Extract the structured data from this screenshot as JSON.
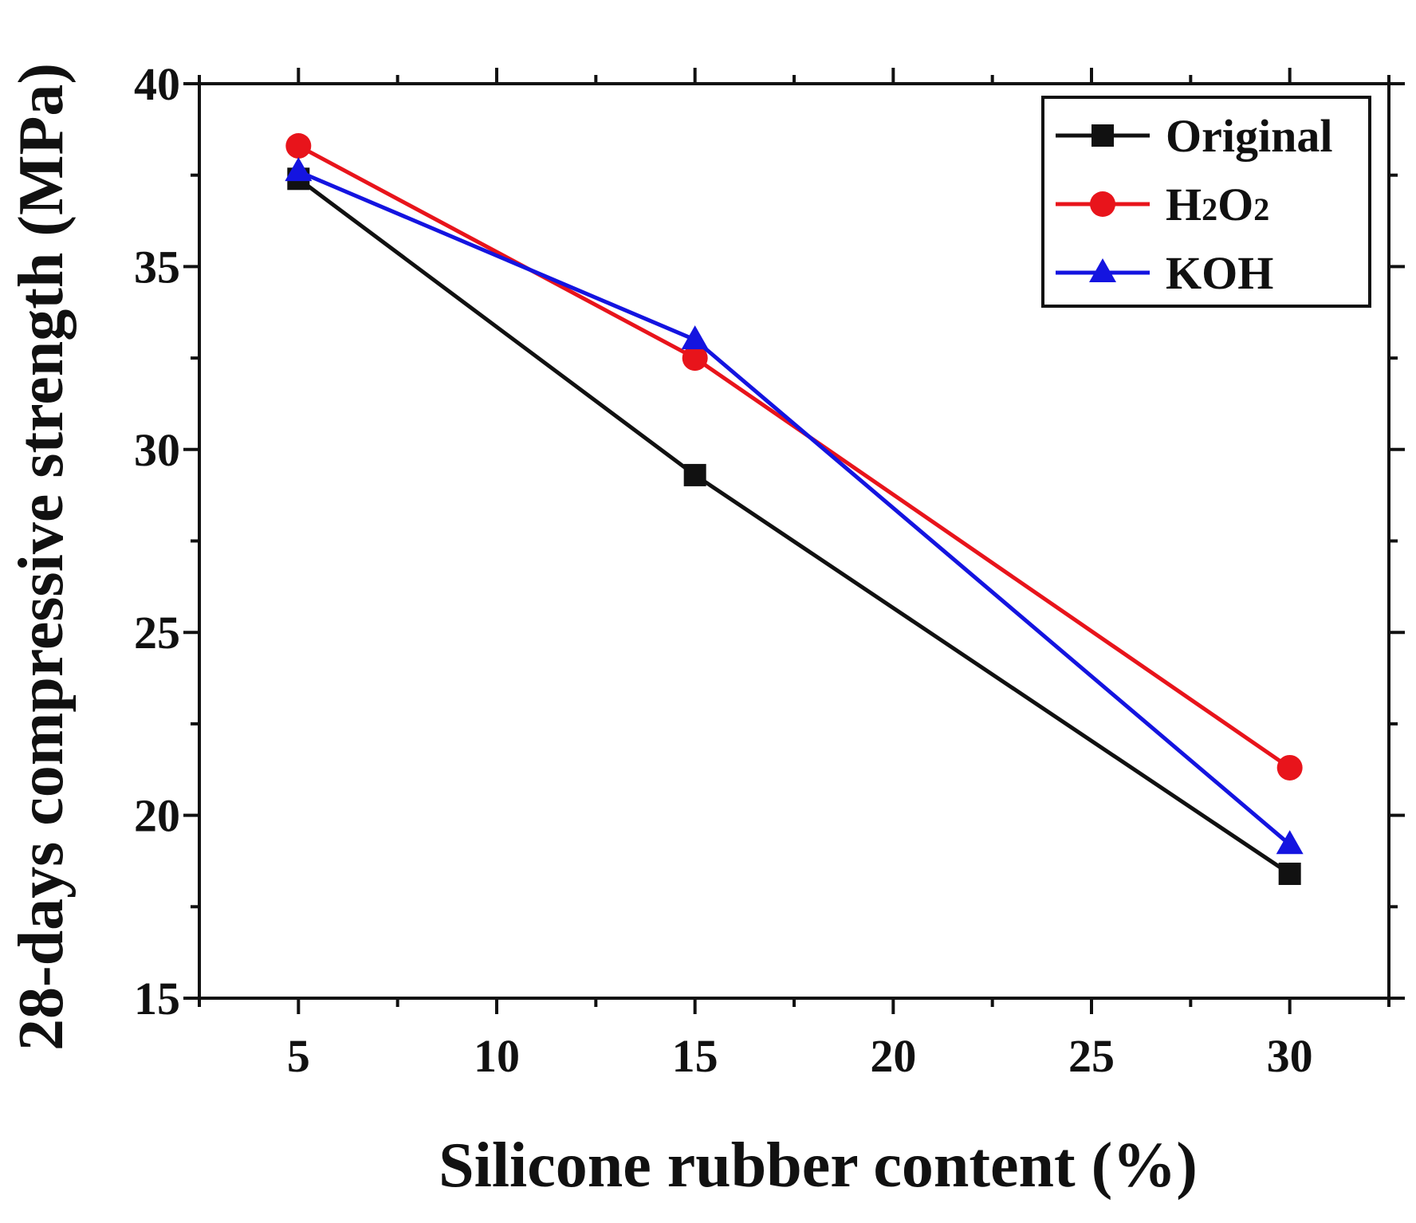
{
  "chart_data": {
    "type": "line",
    "title": "",
    "xlabel": "Silicone rubber content (%)",
    "ylabel": "28-days compressive strength (MPa)",
    "xlim": [
      2.5,
      32.5
    ],
    "ylim": [
      15,
      40
    ],
    "xticks": [
      5,
      10,
      15,
      20,
      25,
      30
    ],
    "xtick_labels": [
      "5",
      "10",
      "15",
      "20",
      "25",
      "30"
    ],
    "yticks": [
      15,
      20,
      25,
      30,
      35,
      40
    ],
    "ytick_labels": [
      "15",
      "20",
      "25",
      "30",
      "35",
      "40"
    ],
    "grid": false,
    "legend_position": "top-right",
    "x": [
      5,
      15,
      30
    ],
    "series": [
      {
        "name": "Original",
        "values": [
          37.4,
          29.3,
          18.4
        ],
        "color": "#111111",
        "marker": "square"
      },
      {
        "name": "H2O2",
        "name_parts": [
          "H",
          "2",
          "O",
          "2"
        ],
        "values": [
          38.3,
          32.5,
          21.3
        ],
        "color": "#e8141b",
        "marker": "circle"
      },
      {
        "name": "KOH",
        "values": [
          37.6,
          33.0,
          19.2
        ],
        "color": "#1414e0",
        "marker": "triangle"
      }
    ]
  }
}
